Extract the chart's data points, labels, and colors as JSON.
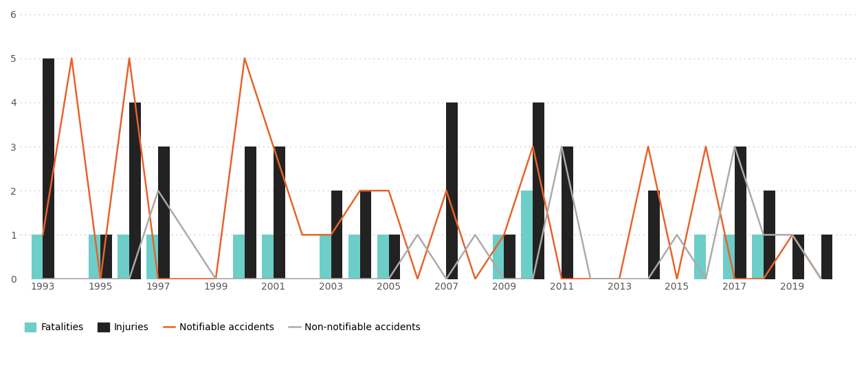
{
  "years": [
    1993,
    1994,
    1995,
    1996,
    1997,
    1998,
    1999,
    2000,
    2001,
    2002,
    2003,
    2004,
    2005,
    2006,
    2007,
    2008,
    2009,
    2010,
    2011,
    2012,
    2013,
    2014,
    2015,
    2016,
    2017,
    2018,
    2019,
    2020
  ],
  "fatalities": [
    1,
    0,
    1,
    1,
    1,
    0,
    0,
    1,
    1,
    0,
    1,
    1,
    1,
    0,
    0,
    0,
    1,
    2,
    0,
    0,
    0,
    0,
    0,
    1,
    1,
    1,
    0,
    0
  ],
  "injuries": [
    5,
    0,
    1,
    4,
    3,
    0,
    0,
    3,
    3,
    0,
    2,
    2,
    1,
    0,
    4,
    0,
    1,
    4,
    3,
    0,
    0,
    2,
    0,
    0,
    3,
    2,
    1,
    1
  ],
  "notifiable": [
    1,
    5,
    0,
    5,
    0,
    0,
    0,
    5,
    3,
    1,
    1,
    2,
    2,
    0,
    2,
    0,
    1,
    3,
    0,
    0,
    0,
    3,
    0,
    3,
    0,
    0,
    1,
    0
  ],
  "non_notifiable": [
    0,
    0,
    0,
    0,
    2,
    1,
    0,
    0,
    0,
    0,
    0,
    0,
    0,
    1,
    0,
    1,
    0,
    0,
    3,
    0,
    0,
    0,
    1,
    0,
    3,
    1,
    1,
    0
  ],
  "bar_color_fatalities": "#6dcdc8",
  "bar_color_injuries": "#222222",
  "line_color_notifiable": "#e8622a",
  "line_color_non_notifiable": "#aaaaaa",
  "background_color": "#ffffff",
  "ylim": [
    0,
    6
  ],
  "yticks": [
    0,
    1,
    2,
    3,
    4,
    5,
    6
  ],
  "xtick_years": [
    1993,
    1995,
    1997,
    1999,
    2001,
    2003,
    2005,
    2007,
    2009,
    2011,
    2013,
    2015,
    2017,
    2019
  ]
}
